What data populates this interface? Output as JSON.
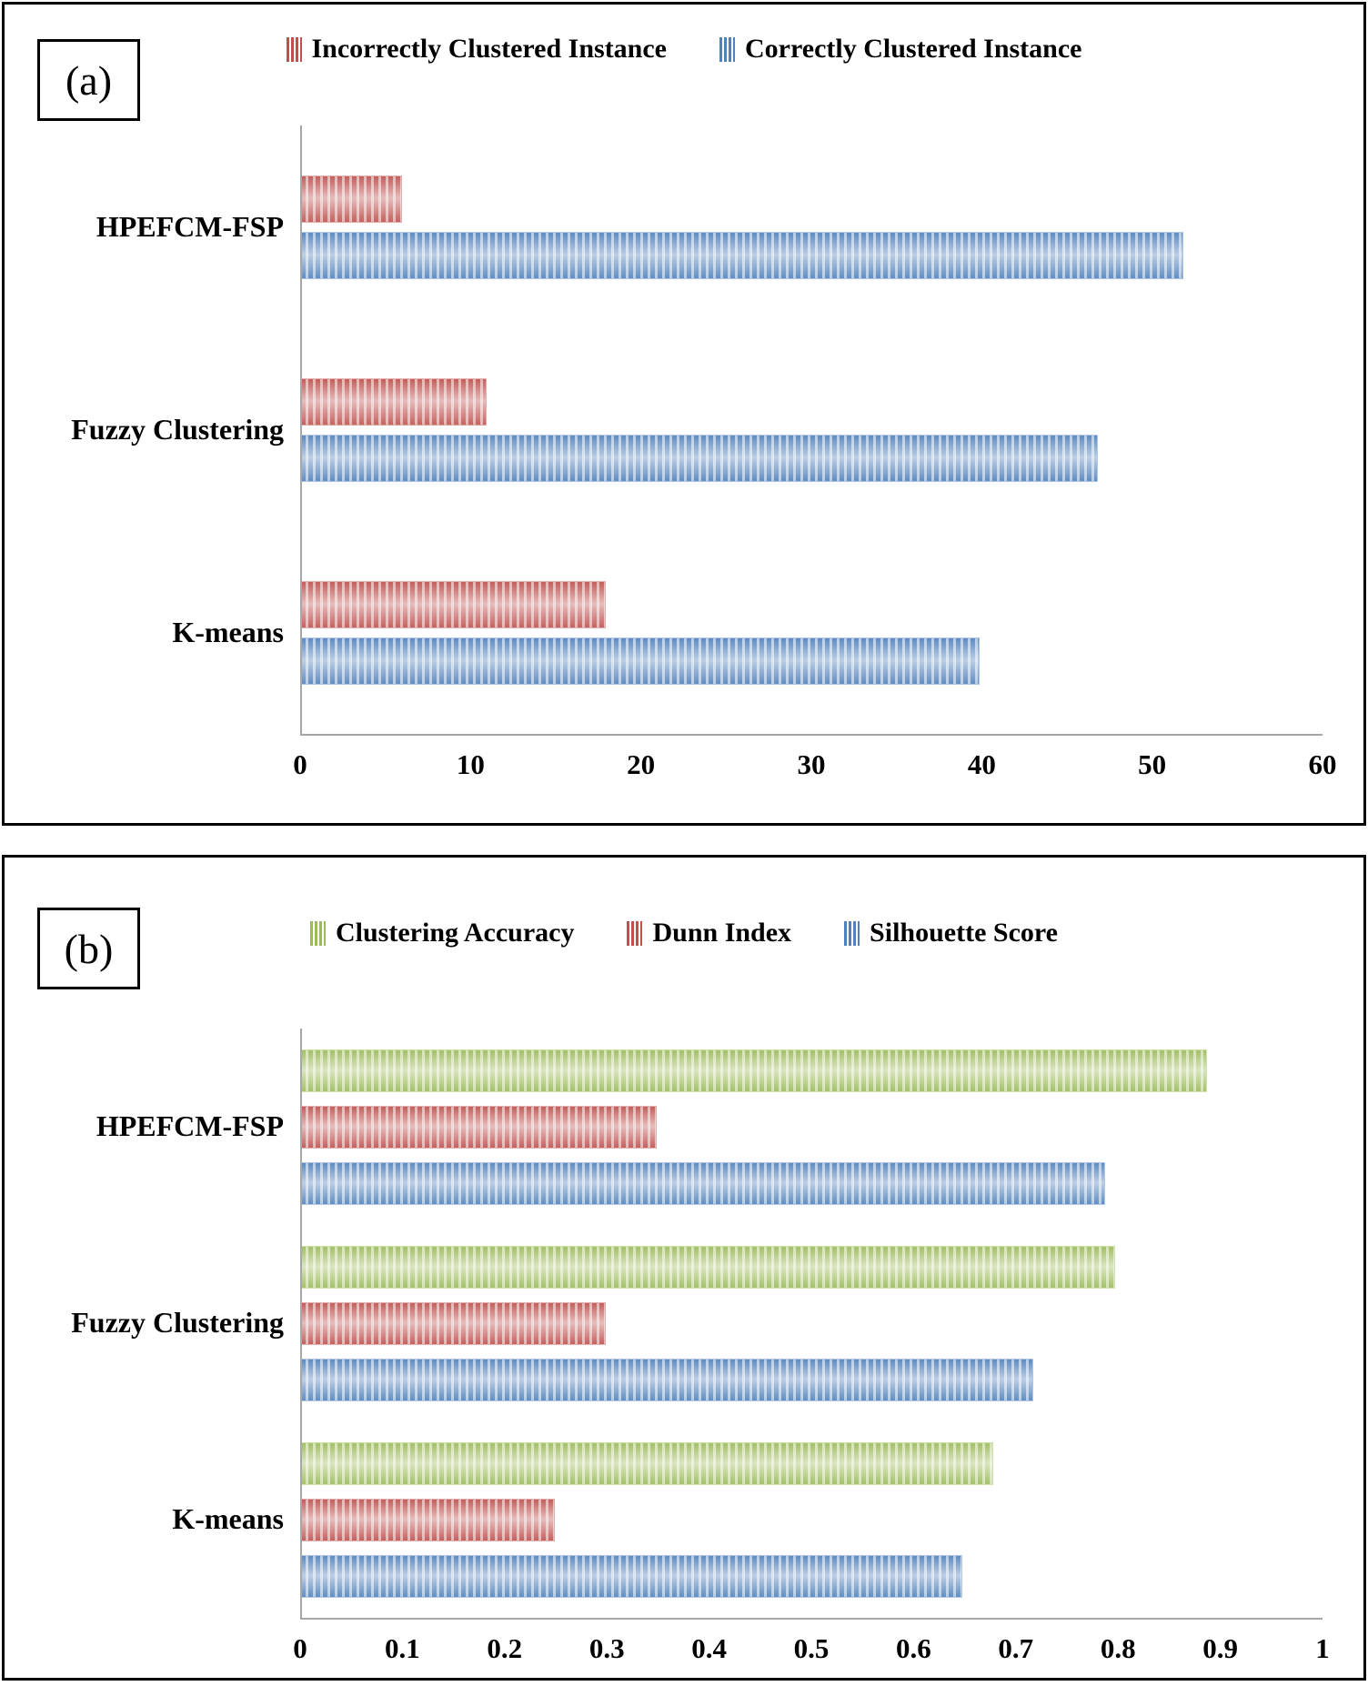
{
  "figure": {
    "panels": [
      {
        "corner_label": "(a)"
      },
      {
        "corner_label": "(b)"
      }
    ]
  },
  "chart_data": [
    {
      "type": "bar",
      "panel": "a",
      "orientation": "horizontal",
      "title": "",
      "categories": [
        "HPEFCM-FSP",
        "Fuzzy Clustering",
        "K-means"
      ],
      "series": [
        {
          "name": "Incorrectly Clustered Instance",
          "color": "#C0504D",
          "tint": "#E2ADAC",
          "values": [
            6,
            11,
            18
          ]
        },
        {
          "name": "Correctly Clustered Instance",
          "color": "#4F81BD",
          "tint": "#AEC6E3",
          "values": [
            52,
            47,
            40
          ]
        }
      ],
      "xlim": [
        0,
        60
      ],
      "xtick_labels": [
        "0",
        "10",
        "20",
        "30",
        "40",
        "50",
        "60"
      ],
      "legend_position": "top",
      "grid": false
    },
    {
      "type": "bar",
      "panel": "b",
      "orientation": "horizontal",
      "title": "",
      "categories": [
        "HPEFCM-FSP",
        "Fuzzy Clustering",
        "K-means"
      ],
      "series": [
        {
          "name": "Clustering Accuracy",
          "color": "#9BBB59",
          "tint": "#CFE0AB",
          "values": [
            0.89,
            0.8,
            0.68
          ]
        },
        {
          "name": "Dunn Index",
          "color": "#C0504D",
          "tint": "#E2ADAC",
          "values": [
            0.35,
            0.3,
            0.25
          ]
        },
        {
          "name": "Silhouette Score",
          "color": "#4F81BD",
          "tint": "#AEC6E3",
          "values": [
            0.79,
            0.72,
            0.65
          ]
        }
      ],
      "xlim": [
        0,
        1
      ],
      "xtick_labels": [
        "0",
        "0.1",
        "0.2",
        "0.3",
        "0.4",
        "0.5",
        "0.6",
        "0.7",
        "0.8",
        "0.9",
        "1"
      ],
      "legend_position": "top",
      "grid": false
    }
  ]
}
